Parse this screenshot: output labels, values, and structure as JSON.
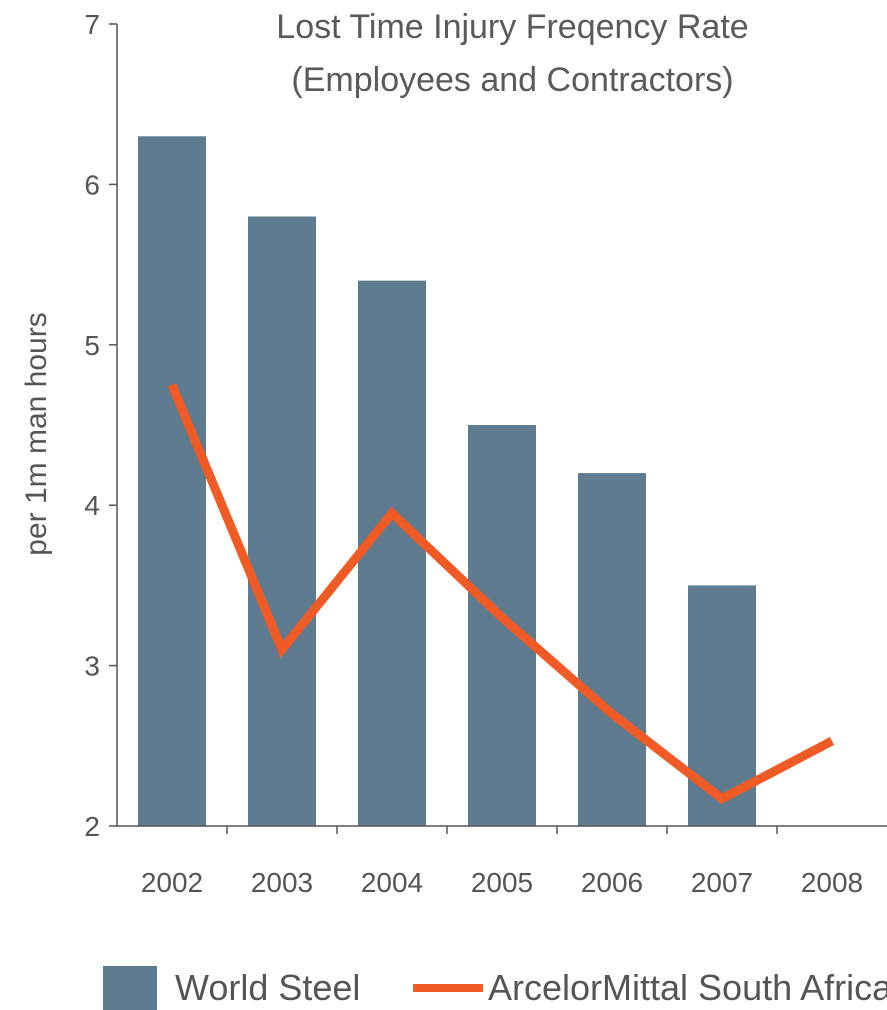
{
  "chart_data": {
    "type": "bar",
    "title": "Lost Time Injury Freqency Rate",
    "subtitle": "(Employees and Contractors)",
    "xlabel": "",
    "ylabel": "per 1m man hours",
    "categories": [
      "2002",
      "2003",
      "2004",
      "2005",
      "2006",
      "2007",
      "2008"
    ],
    "ylim": [
      2,
      7
    ],
    "yticks": [
      "2",
      "3",
      "4",
      "5",
      "6",
      "7"
    ],
    "grid": false,
    "legend_position": "bottom",
    "series": [
      {
        "name": "World Steel",
        "type": "bar",
        "color": "#5e7b8f",
        "values": [
          6.3,
          5.8,
          5.4,
          4.5,
          4.2,
          3.5,
          null
        ]
      },
      {
        "name": "ArcelorMittal South Africa",
        "type": "line",
        "color": "#f05a24",
        "values": [
          4.75,
          3.1,
          3.95,
          3.3,
          2.7,
          2.17,
          2.53
        ]
      }
    ]
  }
}
